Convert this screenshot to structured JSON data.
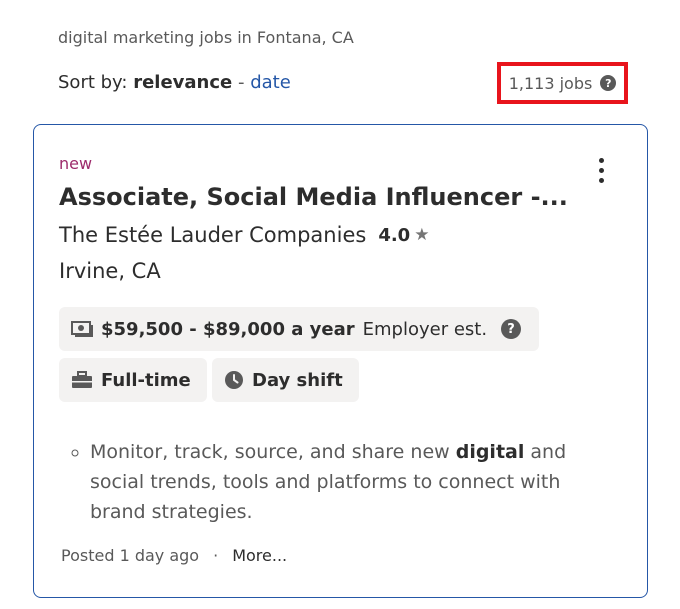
{
  "search_context": "digital marketing jobs in Fontana, CA",
  "sort": {
    "prefix": "Sort by:",
    "active": "relevance",
    "separator": "-",
    "alternate": "date"
  },
  "jobs_count": {
    "label": "1,113 jobs",
    "help_icon": "?"
  },
  "job_card": {
    "badge": "new",
    "title": "Associate, Social Media Influencer -...",
    "company": "The Estée Lauder Companies",
    "rating": "4.0",
    "star_icon": "★",
    "location": "Irvine, CA",
    "salary": {
      "amount": "$59,500 - $89,000 a year",
      "note": "Employer est.",
      "help_icon": "?"
    },
    "tags": [
      {
        "label": "Full-time",
        "icon": "briefcase-icon"
      },
      {
        "label": "Day shift",
        "icon": "clock-icon"
      }
    ],
    "snippet": {
      "before": "Monitor, track, source, and share new ",
      "bold": "digital",
      "after": " and social trends, tools and platforms to connect with brand strategies."
    },
    "posted": "Posted 1 day ago",
    "dot": "·",
    "more": "More..."
  },
  "colors": {
    "accent_blue": "#2557a7",
    "highlight_red": "#e8141c",
    "new_badge": "#9d2b6b",
    "tag_bg": "#f3f2f1"
  }
}
